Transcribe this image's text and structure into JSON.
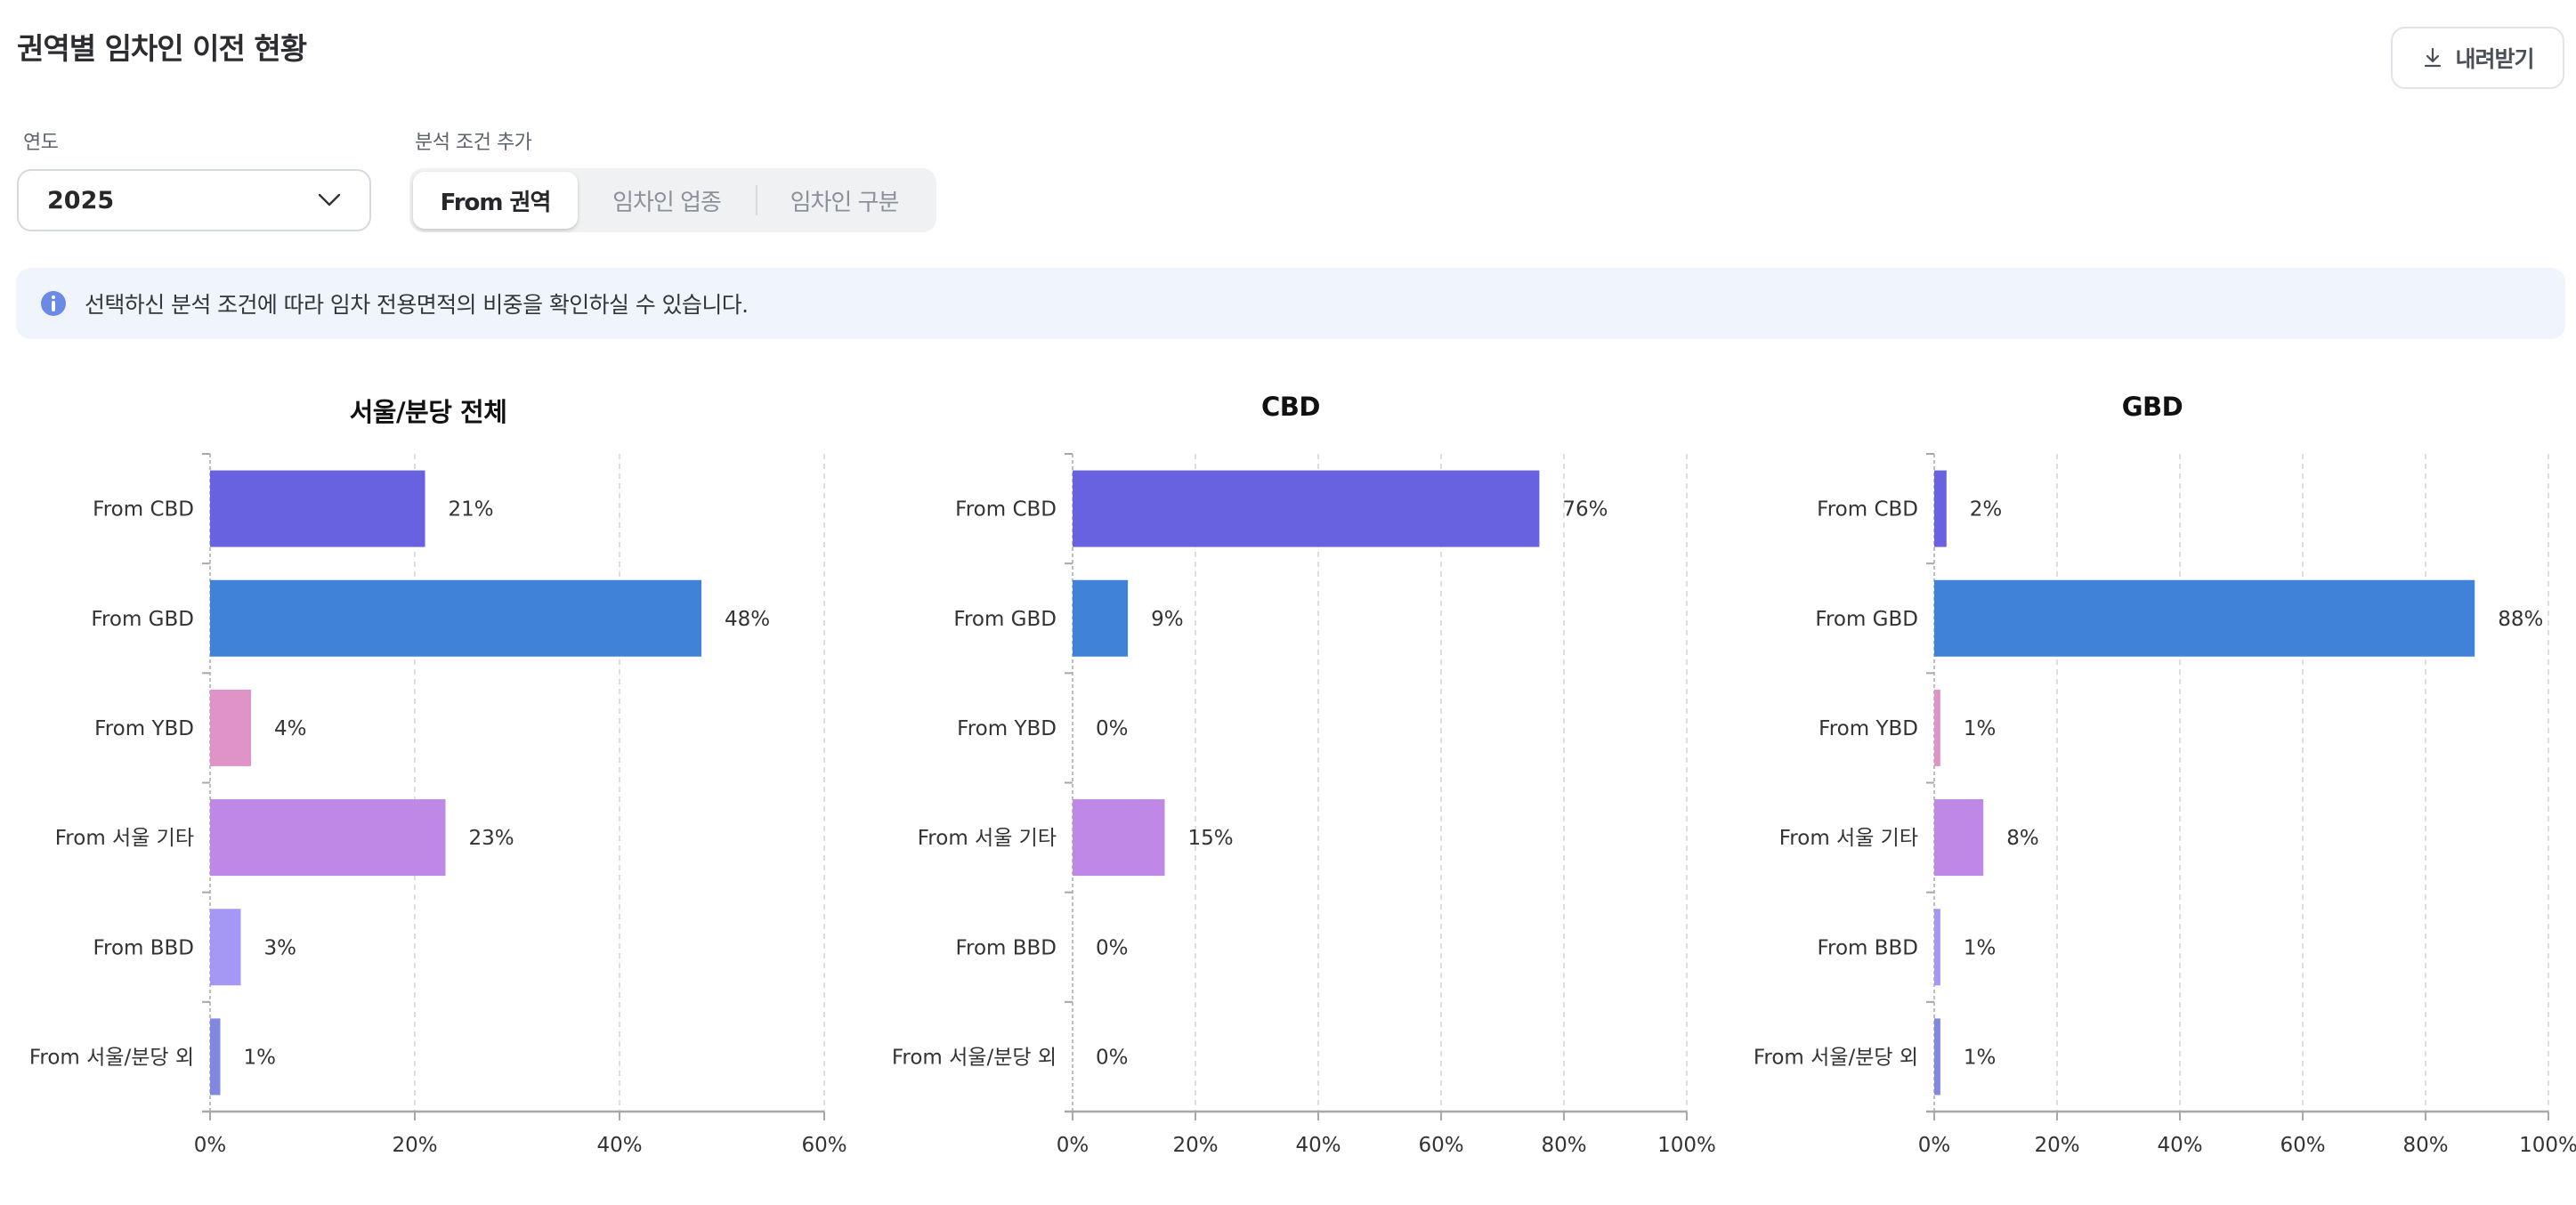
{
  "header": {
    "title": "권역별 임차인 이전 현황",
    "download_label": "내려받기",
    "download_icon": "download-icon"
  },
  "filters": {
    "year_label": "연도",
    "year_value": "2025",
    "condition_label": "분석 조건 추가",
    "condition_tabs": [
      {
        "label": "From 권역",
        "active": true
      },
      {
        "label": "임차인 업종",
        "active": false
      },
      {
        "label": "임차인 구분",
        "active": false
      }
    ]
  },
  "info": {
    "icon": "info-icon",
    "text": "선택하신 분석 조건에 따라 임차 전용면적의 비중을 확인하실 수 있습니다."
  },
  "colors": {
    "From CBD": "#6962E0",
    "From GBD": "#3F82D8",
    "From YBD": "#E093C6",
    "From 서울 기타": "#C088E6",
    "From BBD": "#A598F4",
    "From 서울/분당 외": "#8088E0"
  },
  "chart_data": [
    {
      "type": "bar",
      "orientation": "horizontal",
      "title": "서울/분당 전체",
      "categories": [
        "From CBD",
        "From GBD",
        "From YBD",
        "From 서울 기타",
        "From BBD",
        "From 서울/분당 외"
      ],
      "values": [
        21,
        48,
        4,
        23,
        3,
        1
      ],
      "value_labels": [
        "21%",
        "48%",
        "4%",
        "23%",
        "3%",
        "1%"
      ],
      "xlim": [
        0,
        60
      ],
      "xticks": [
        0,
        20,
        40,
        60
      ],
      "xtick_labels": [
        "0%",
        "20%",
        "40%",
        "60%"
      ],
      "grid": true
    },
    {
      "type": "bar",
      "orientation": "horizontal",
      "title": "CBD",
      "categories": [
        "From CBD",
        "From GBD",
        "From YBD",
        "From 서울 기타",
        "From BBD",
        "From 서울/분당 외"
      ],
      "values": [
        76,
        9,
        0,
        15,
        0,
        0
      ],
      "value_labels": [
        "76%",
        "9%",
        "0%",
        "15%",
        "0%",
        "0%"
      ],
      "xlim": [
        0,
        100
      ],
      "xticks": [
        0,
        20,
        40,
        60,
        80,
        100
      ],
      "xtick_labels": [
        "0%",
        "20%",
        "40%",
        "60%",
        "80%",
        "100%"
      ],
      "grid": true
    },
    {
      "type": "bar",
      "orientation": "horizontal",
      "title": "GBD",
      "categories": [
        "From CBD",
        "From GBD",
        "From YBD",
        "From 서울 기타",
        "From BBD",
        "From 서울/분당 외"
      ],
      "values": [
        2,
        88,
        1,
        8,
        1,
        1
      ],
      "value_labels": [
        "2%",
        "88%",
        "1%",
        "8%",
        "1%",
        "1%"
      ],
      "xlim": [
        0,
        100
      ],
      "xticks": [
        0,
        20,
        40,
        60,
        80,
        100
      ],
      "xtick_labels": [
        "0%",
        "20%",
        "40%",
        "60%",
        "80%",
        "100%"
      ],
      "grid": true
    }
  ]
}
